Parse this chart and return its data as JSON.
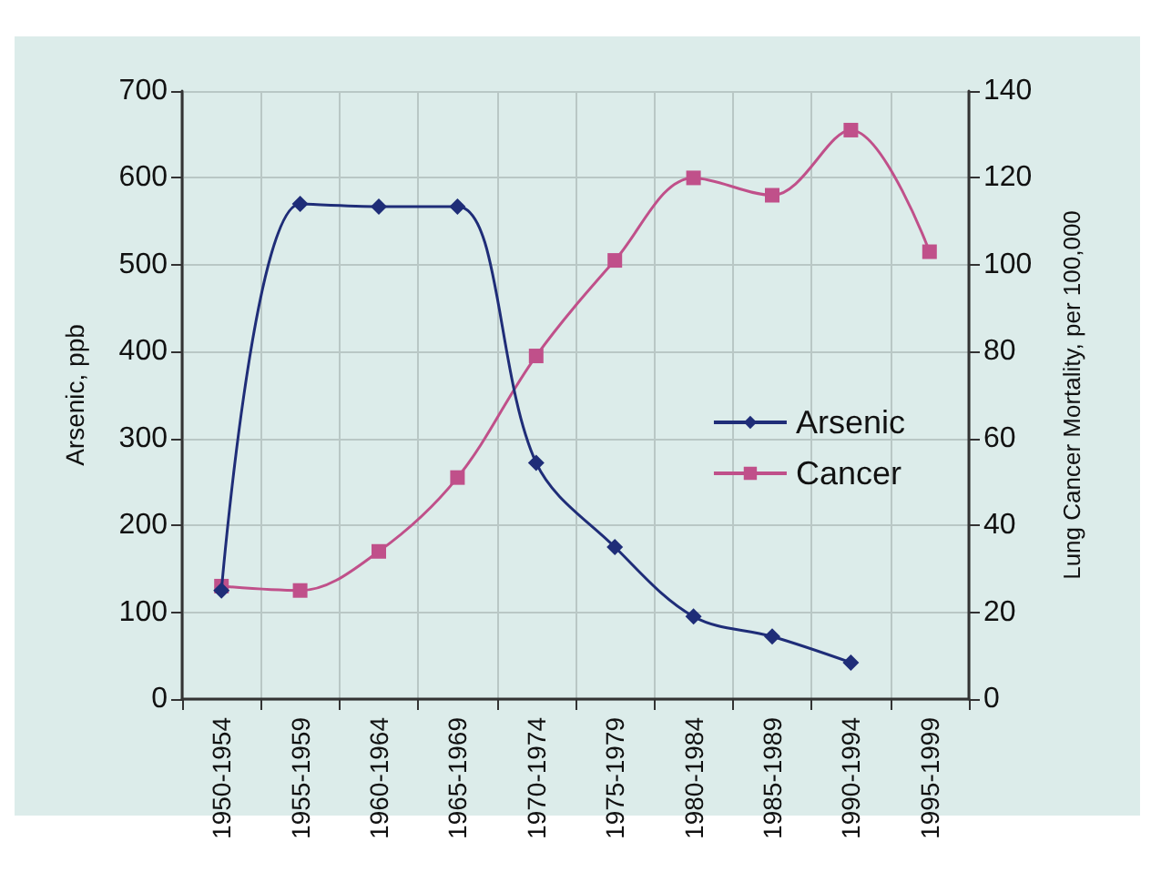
{
  "chart_data": {
    "type": "line",
    "ylabel": "Arsenic, ppb",
    "y2label": "Lung Cancer Mortality, per 100,000",
    "categories": [
      "1950-1954",
      "1955-1959",
      "1960-1964",
      "1965-1969",
      "1970-1974",
      "1975-1979",
      "1980-1984",
      "1985-1989",
      "1990-1994",
      "1995-1999"
    ],
    "series": [
      {
        "name": "Arsenic",
        "color": "#1f2d78",
        "marker": "diamond",
        "values": [
          125,
          570,
          567,
          567,
          272,
          175,
          95,
          72,
          42,
          null
        ]
      },
      {
        "name": "Cancer",
        "color": "#c0508a",
        "marker": "square",
        "axis": "y2",
        "values": [
          26,
          25,
          34,
          51,
          79,
          101,
          120,
          116,
          131,
          103
        ]
      }
    ],
    "ylim": [
      0,
      700
    ],
    "yticks": [
      0,
      100,
      200,
      300,
      400,
      500,
      600,
      700
    ],
    "y2lim": [
      0,
      140
    ],
    "y2ticks": [
      0,
      20,
      40,
      60,
      80,
      100,
      120,
      140
    ],
    "grid": true,
    "legend": "right"
  }
}
